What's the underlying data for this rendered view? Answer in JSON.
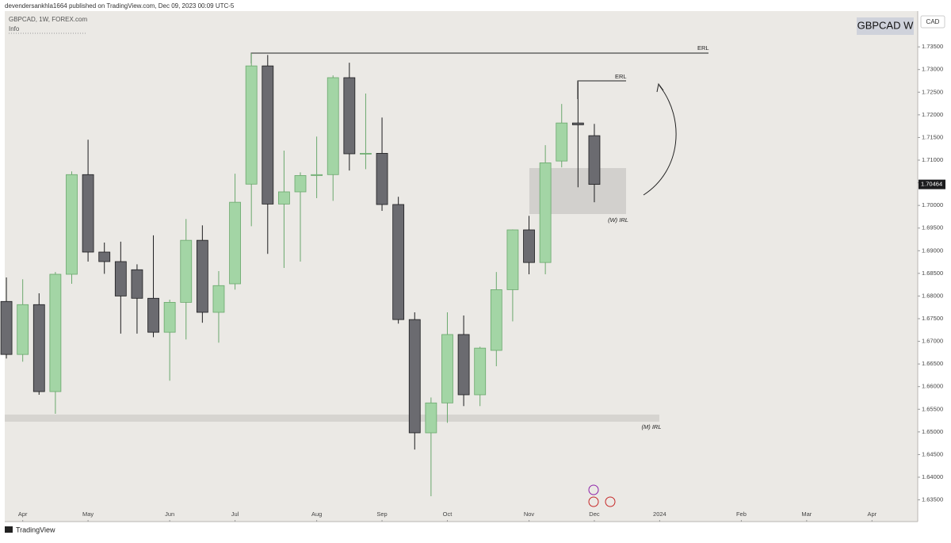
{
  "chart_data": {
    "type": "candlestick",
    "publisher": "devendersankhla1664 published on TradingView.com, Dec 09, 2023 00:09 UTC-5",
    "title": "GBPCAD, 1W, FOREX.com",
    "subtitle": "Info",
    "symbol_badge": "GBPCAD W",
    "currency": "CAD",
    "brand": "TradingView",
    "annotations": [
      "ERL",
      "ERL",
      "(W) IRL",
      "(M) IRL"
    ],
    "last_price": 1.70464,
    "up_color": "#a3d5a5",
    "up_border": "#6aa86d",
    "down_color": "#6b6b70",
    "down_border": "#1c1c1e",
    "open": [
      1.6788,
      1.6671,
      1.6781,
      1.6589,
      1.6848,
      1.7068,
      1.6897,
      1.6876,
      1.6858,
      1.6795,
      1.672,
      1.6786,
      1.6923,
      1.6764,
      1.6827,
      1.7047,
      1.7308,
      1.7003,
      1.703,
      1.7066,
      1.7068,
      1.7282,
      1.7114,
      1.7115,
      1.7002,
      1.6748,
      1.6498,
      1.6564,
      1.6715,
      1.6582,
      1.668,
      1.6814,
      1.6946,
      1.6874,
      1.7098,
      1.7182,
      1.7154
    ],
    "high": [
      1.6841,
      1.6837,
      1.6806,
      1.6853,
      1.7075,
      1.7145,
      1.6918,
      1.692,
      1.687,
      1.6934,
      1.6792,
      1.697,
      1.6956,
      1.6855,
      1.707,
      1.7336,
      1.7332,
      1.7121,
      1.7073,
      1.7152,
      1.7287,
      1.7315,
      1.7247,
      1.7194,
      1.7019,
      1.6764,
      1.6576,
      1.6764,
      1.6757,
      1.6688,
      1.6853,
      1.6947,
      1.6977,
      1.7133,
      1.7224,
      1.7273,
      1.718
    ],
    "low": [
      1.6662,
      1.6655,
      1.6582,
      1.654,
      1.6827,
      1.6876,
      1.6849,
      1.6717,
      1.6717,
      1.6709,
      1.6613,
      1.6704,
      1.6741,
      1.6697,
      1.6814,
      1.6954,
      1.6893,
      1.6862,
      1.6876,
      1.7016,
      1.701,
      1.7077,
      1.708,
      1.6988,
      1.6739,
      1.6461,
      1.6358,
      1.652,
      1.6557,
      1.6557,
      1.6645,
      1.6744,
      1.6848,
      1.6848,
      1.7084,
      1.704,
      1.7007
    ],
    "close": [
      1.6671,
      1.6781,
      1.6589,
      1.6848,
      1.7068,
      1.6897,
      1.6876,
      1.68,
      1.6795,
      1.672,
      1.6786,
      1.6923,
      1.6764,
      1.6823,
      1.7007,
      1.7308,
      1.7003,
      1.703,
      1.7066,
      1.7068,
      1.7282,
      1.7114,
      1.7115,
      1.7002,
      1.6748,
      1.6498,
      1.6564,
      1.6715,
      1.6582,
      1.6685,
      1.6814,
      1.6946,
      1.6874,
      1.7094,
      1.7182,
      1.7178,
      1.70464
    ],
    "xlim": [
      -0.1,
      55.8
    ],
    "xticks": [
      {
        "value": 1,
        "label": "Apr"
      },
      {
        "value": 5,
        "label": "May"
      },
      {
        "value": 10,
        "label": "Jun"
      },
      {
        "value": 14,
        "label": "Jul"
      },
      {
        "value": 19,
        "label": "Aug"
      },
      {
        "value": 23,
        "label": "Sep"
      },
      {
        "value": 27,
        "label": "Oct"
      },
      {
        "value": 32,
        "label": "Nov"
      },
      {
        "value": 36,
        "label": "Dec"
      },
      {
        "value": 40,
        "label": "2024"
      },
      {
        "value": 45,
        "label": "Feb"
      },
      {
        "value": 49,
        "label": "Mar"
      },
      {
        "value": 53,
        "label": "Apr"
      }
    ],
    "ylim": [
      1.6302,
      1.7429
    ],
    "yticks": [
      {
        "value": 1.635,
        "label": "1.63500"
      },
      {
        "value": 1.64,
        "label": "1.64000"
      },
      {
        "value": 1.645,
        "label": "1.64500"
      },
      {
        "value": 1.65,
        "label": "1.65000"
      },
      {
        "value": 1.655,
        "label": "1.65500"
      },
      {
        "value": 1.66,
        "label": "1.66000"
      },
      {
        "value": 1.665,
        "label": "1.66500"
      },
      {
        "value": 1.67,
        "label": "1.67000"
      },
      {
        "value": 1.675,
        "label": "1.67500"
      },
      {
        "value": 1.68,
        "label": "1.68000"
      },
      {
        "value": 1.685,
        "label": "1.68500"
      },
      {
        "value": 1.69,
        "label": "1.69000"
      },
      {
        "value": 1.695,
        "label": "1.69500"
      },
      {
        "value": 1.7,
        "label": "1.70000"
      },
      {
        "value": 1.705,
        "label": "1.70500"
      },
      {
        "value": 1.71,
        "label": "1.71000"
      },
      {
        "value": 1.715,
        "label": "1.71500"
      },
      {
        "value": 1.72,
        "label": "1.72000"
      },
      {
        "value": 1.725,
        "label": "1.72500"
      },
      {
        "value": 1.73,
        "label": "1.73000"
      },
      {
        "value": 1.735,
        "label": "1.73500"
      }
    ]
  }
}
